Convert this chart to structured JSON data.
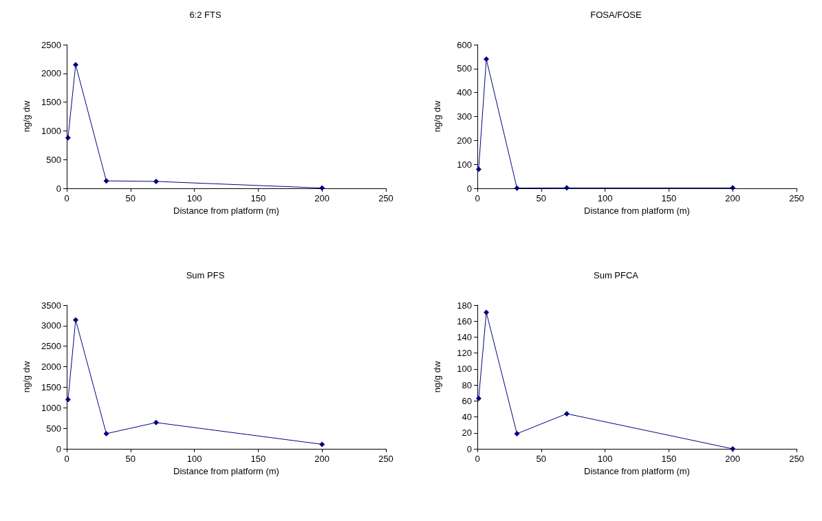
{
  "chart_data": [
    {
      "type": "line",
      "title": "6:2 FTS",
      "xlabel": "Distance from platform (m)",
      "ylabel": "ng/g dw",
      "x": [
        1,
        7,
        31,
        70,
        200
      ],
      "values": [
        880,
        2150,
        130,
        120,
        5
      ],
      "color": "#000080",
      "marker": "diamond",
      "xlim": [
        0,
        250
      ],
      "xticks": [
        0,
        50,
        100,
        150,
        200,
        250
      ],
      "ylim": [
        0,
        2500
      ],
      "yticks": [
        0,
        500,
        1000,
        1500,
        2000,
        2500
      ]
    },
    {
      "type": "line",
      "title": "FOSA/FOSE",
      "xlabel": "Distance from platform (m)",
      "ylabel": "ng/g dw",
      "x": [
        1,
        7,
        31,
        70,
        200
      ],
      "values": [
        80,
        540,
        1,
        2,
        2
      ],
      "color": "#000080",
      "marker": "diamond",
      "xlim": [
        0,
        250
      ],
      "xticks": [
        0,
        50,
        100,
        150,
        200,
        250
      ],
      "ylim": [
        0,
        600
      ],
      "yticks": [
        0,
        100,
        200,
        300,
        400,
        500,
        600
      ]
    },
    {
      "type": "line",
      "title": "Sum PFS",
      "xlabel": "Distance from platform (m)",
      "ylabel": "ng/g dw",
      "x": [
        1,
        7,
        31,
        70,
        200
      ],
      "values": [
        1200,
        3140,
        370,
        640,
        110
      ],
      "color": "#000080",
      "marker": "diamond",
      "xlim": [
        0,
        250
      ],
      "xticks": [
        0,
        50,
        100,
        150,
        200,
        250
      ],
      "ylim": [
        0,
        3500
      ],
      "yticks": [
        0,
        500,
        1000,
        1500,
        2000,
        2500,
        3000,
        3500
      ]
    },
    {
      "type": "line",
      "title": "Sum PFCA",
      "xlabel": "Distance from platform (m)",
      "ylabel": "ng/g dw",
      "x": [
        1,
        7,
        31,
        70,
        200
      ],
      "values": [
        63,
        171,
        19,
        44,
        0
      ],
      "color": "#000080",
      "marker": "diamond",
      "xlim": [
        0,
        250
      ],
      "xticks": [
        0,
        50,
        100,
        150,
        200,
        250
      ],
      "ylim": [
        0,
        180
      ],
      "yticks": [
        0,
        20,
        40,
        60,
        80,
        100,
        120,
        140,
        160,
        180
      ]
    }
  ]
}
